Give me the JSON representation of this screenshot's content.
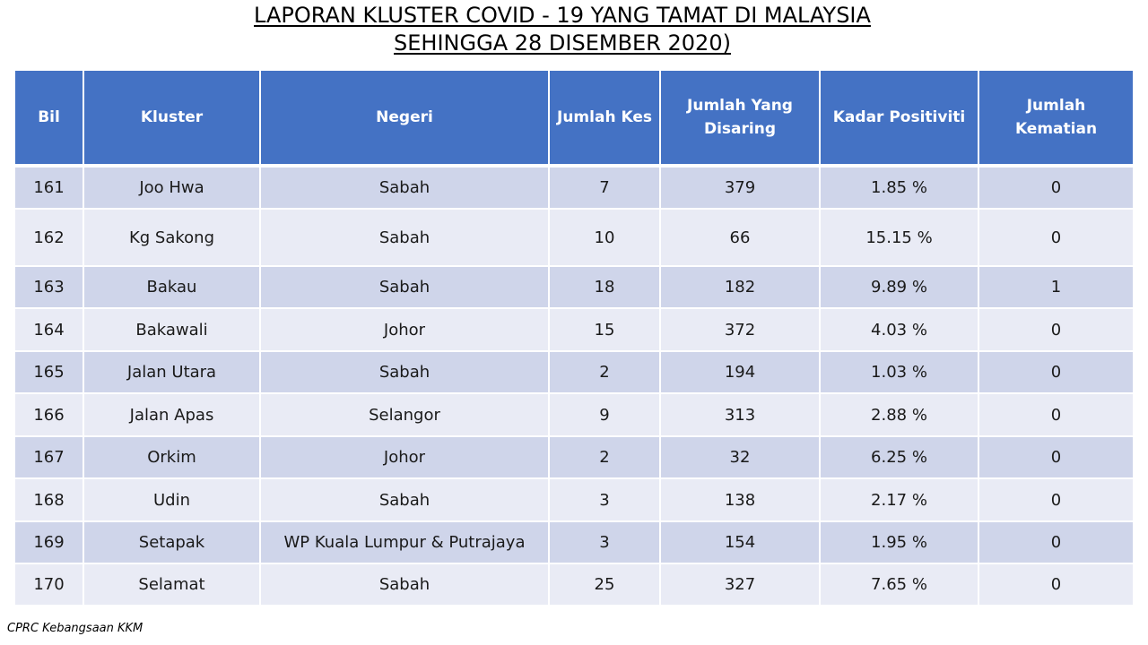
{
  "title": {
    "line1": "LAPORAN KLUSTER COVID - 19 YANG TAMAT DI MALAYSIA",
    "line2": "SEHINGGA 28 DISEMBER 2020)"
  },
  "table": {
    "headers": [
      "Bil",
      "Kluster",
      "Negeri",
      "Jumlah Kes",
      "Jumlah Yang Disaring",
      "Kadar Positiviti",
      "Jumlah Kematian"
    ],
    "rows": [
      [
        "161",
        "Joo Hwa",
        "Sabah",
        "7",
        "379",
        "1.85 %",
        "0"
      ],
      [
        "162",
        "Kg Sakong",
        "Sabah",
        "10",
        "66",
        "15.15 %",
        "0"
      ],
      [
        "163",
        "Bakau",
        "Sabah",
        "18",
        "182",
        "9.89 %",
        "1"
      ],
      [
        "164",
        "Bakawali",
        "Johor",
        "15",
        "372",
        "4.03 %",
        "0"
      ],
      [
        "165",
        "Jalan Utara",
        "Sabah",
        "2",
        "194",
        "1.03 %",
        "0"
      ],
      [
        "166",
        "Jalan Apas",
        "Selangor",
        "9",
        "313",
        "2.88 %",
        "0"
      ],
      [
        "167",
        "Orkim",
        "Johor",
        "2",
        "32",
        "6.25 %",
        "0"
      ],
      [
        "168",
        "Udin",
        "Sabah",
        "3",
        "138",
        "2.17 %",
        "0"
      ],
      [
        "169",
        "Setapak",
        "WP Kuala Lumpur & Putrajaya",
        "3",
        "154",
        "1.95 %",
        "0"
      ],
      [
        "170",
        "Selamat",
        "Sabah",
        "25",
        "327",
        "7.65 %",
        "0"
      ]
    ]
  },
  "footer": "CPRC Kebangsaan KKM",
  "colors": {
    "header_bg": "#4472c4",
    "row_odd": "#cfd5ea",
    "row_even": "#e9ebf5"
  }
}
